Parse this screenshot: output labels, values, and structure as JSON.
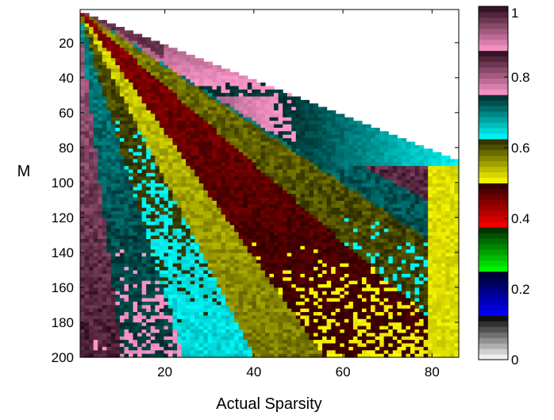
{
  "chart_data": {
    "type": "heatmap",
    "title": "",
    "xlabel": "Actual Sparsity",
    "ylabel": "M",
    "xlim": [
      1,
      86
    ],
    "ylim": [
      200,
      1
    ],
    "y_axis_reversed": true,
    "x_ticks": [
      20,
      40,
      60,
      80
    ],
    "x_tick_labels": [
      "20",
      "40",
      "60",
      "80"
    ],
    "y_ticks": [
      20,
      40,
      60,
      80,
      100,
      120,
      140,
      160,
      180,
      200
    ],
    "y_tick_labels": [
      "20",
      "40",
      "60",
      "80",
      "100",
      "120",
      "140",
      "160",
      "180",
      "200"
    ],
    "grid": false,
    "valid_region": "defined only where Actual Sparsity < M; upper-right triangle is blank",
    "colorbar": {
      "range": [
        0,
        1
      ],
      "ticks": [
        0,
        0.2,
        0.4,
        0.6,
        0.8,
        1
      ],
      "tick_labels": [
        "0",
        "0.2",
        "0.4",
        "0.6",
        "0.8",
        "1"
      ],
      "segments": [
        {
          "from": 0.0,
          "to": 0.125,
          "light": "#ffffff",
          "dark": "#000000"
        },
        {
          "from": 0.125,
          "to": 0.25,
          "light": "#0000ff",
          "dark": "#000028"
        },
        {
          "from": 0.25,
          "to": 0.375,
          "light": "#00ff00",
          "dark": "#002800"
        },
        {
          "from": 0.375,
          "to": 0.5,
          "light": "#ff0000",
          "dark": "#280000"
        },
        {
          "from": 0.5,
          "to": 0.625,
          "light": "#ffff00",
          "dark": "#282800"
        },
        {
          "from": 0.625,
          "to": 0.75,
          "light": "#00ffff",
          "dark": "#002828"
        },
        {
          "from": 0.75,
          "to": 0.875,
          "light": "#ff99cc",
          "dark": "#2a0a1a"
        },
        {
          "from": 0.875,
          "to": 1.0,
          "light": "#ff99cc",
          "dark": "#2a0a1a"
        }
      ]
    },
    "regions_note": "values are approximate readings of the dominant band value per region",
    "bands_by_ratio": [
      {
        "ratio_max": 0.05,
        "value": 0.83
      },
      {
        "ratio_max": 0.12,
        "value": 0.72
      },
      {
        "ratio_max": 0.2,
        "value": 0.62
      },
      {
        "ratio_max": 0.28,
        "value": 0.55
      },
      {
        "ratio_max": 0.45,
        "value": 0.47
      },
      {
        "ratio_max": 0.6,
        "value": 0.6
      },
      {
        "ratio_max": 0.72,
        "value": 0.72
      },
      {
        "ratio_max": 1.0,
        "value": 0.85
      }
    ]
  }
}
